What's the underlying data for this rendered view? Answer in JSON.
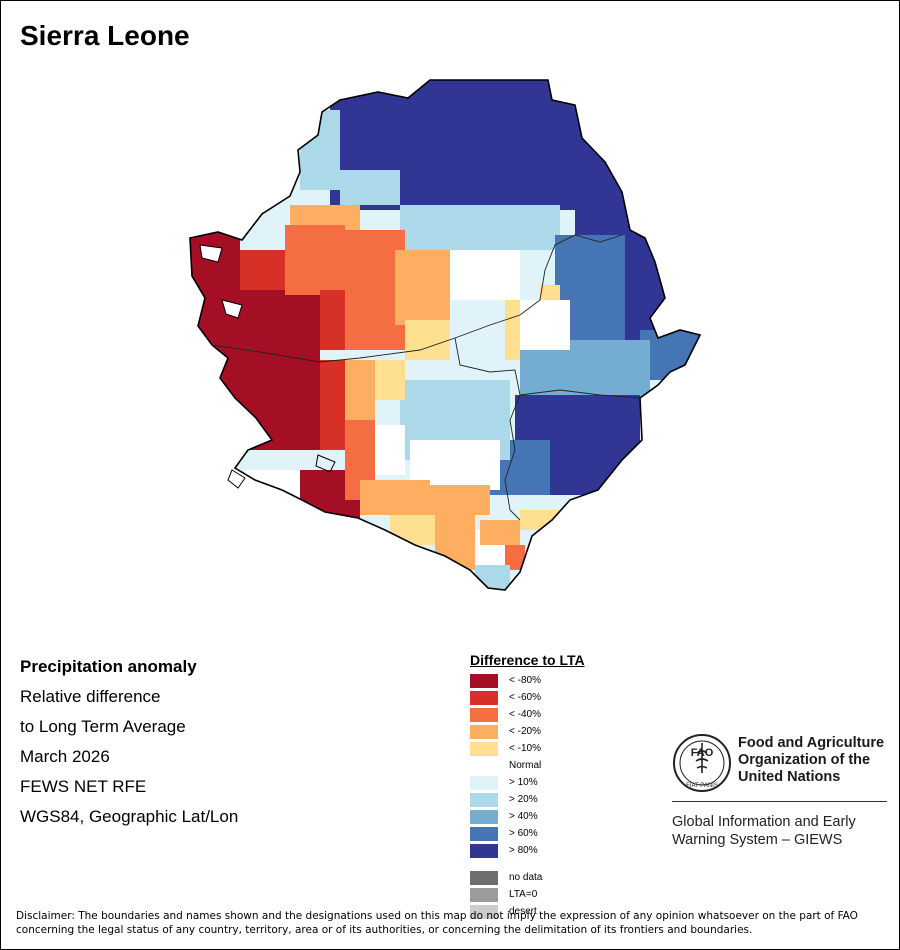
{
  "title": "Sierra Leone",
  "map_description_lines": {
    "heading": "Precipitation anomaly",
    "line1": "Relative difference",
    "line2": "to Long Term Average",
    "line3": "March 2026",
    "line4": "FEWS NET RFE",
    "line5": "WGS84, Geographic Lat/Lon"
  },
  "legend": {
    "title": "Difference to LTA",
    "classes": [
      {
        "label": "< -80%",
        "color": "#a50f26"
      },
      {
        "label": "< -60%",
        "color": "#d73027"
      },
      {
        "label": "< -40%",
        "color": "#f46d43"
      },
      {
        "label": "< -20%",
        "color": "#fdae61"
      },
      {
        "label": "< -10%",
        "color": "#fee090"
      },
      {
        "label": "Normal",
        "color": "#ffffff"
      },
      {
        "label": "> 10%",
        "color": "#e0f3f8"
      },
      {
        "label": "> 20%",
        "color": "#abd9e9"
      },
      {
        "label": "> 40%",
        "color": "#74add1"
      },
      {
        "label": "> 60%",
        "color": "#4575b4"
      },
      {
        "label": "> 80%",
        "color": "#313695"
      }
    ],
    "extra": [
      {
        "label": "no data",
        "color": "#6e6e6e"
      },
      {
        "label": "LTA=0",
        "color": "#9c9c9c"
      },
      {
        "label": "desert",
        "color": "#cccccc"
      }
    ]
  },
  "organization": {
    "name_line1": "Food and Agriculture",
    "name_line2": "Organization of the",
    "name_line3": "United Nations",
    "emblem_text": "FAO",
    "emblem_motto": "FIAT PANIS",
    "system_line1": "Global Information and Early",
    "system_line2": "Warning System – GIEWS"
  },
  "disclaimer": "Disclaimer: The boundaries and names shown and the designations used on this map do not imply the expression of any opinion whatsoever on the part of FAO concerning the legal status of any country, territory, area or of its authorities, or concerning the delimitation of its frontiers and boundaries."
}
